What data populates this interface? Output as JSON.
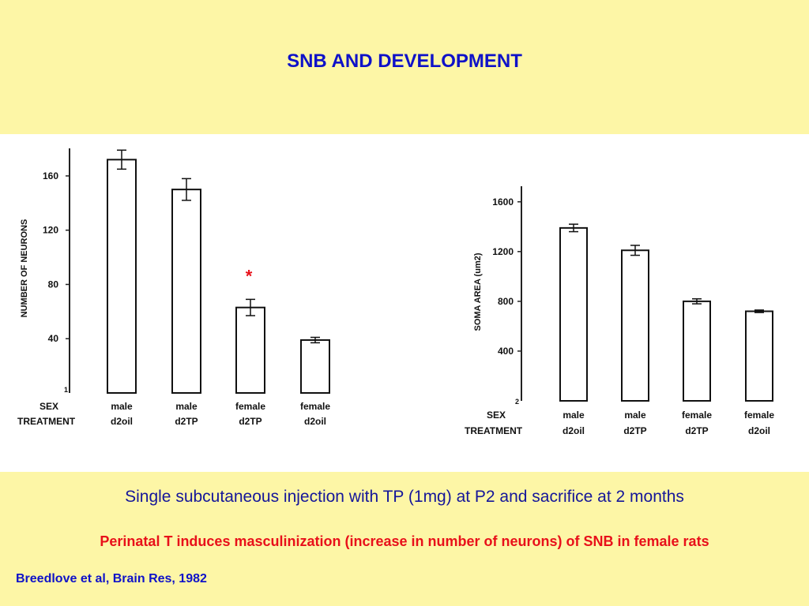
{
  "slide": {
    "title": "SNB AND DEVELOPMENT",
    "caption": "Single subcutaneous injection with TP (1mg) at P2 and sacrifice at 2 months",
    "conclusion": "Perinatal T induces masculinization (increase in number of neurons) of SNB in female rats",
    "citation": "Breedlove et al, Brain Res, 1982"
  },
  "colors": {
    "background": "#fdf6a6",
    "title": "#0f12c8",
    "caption": "#15169a",
    "conclusion": "#e8101a",
    "asterisk": "#e8101a"
  },
  "chart_data": [
    {
      "type": "bar",
      "ylabel": "NUMBER OF NEURONS",
      "panel_number": "1",
      "row_labels": [
        "SEX",
        "TREATMENT"
      ],
      "categories": [
        {
          "sex": "male",
          "treatment": "d2oil"
        },
        {
          "sex": "male",
          "treatment": "d2TP"
        },
        {
          "sex": "female",
          "treatment": "d2TP"
        },
        {
          "sex": "female",
          "treatment": "d2oil"
        }
      ],
      "values": [
        172,
        150,
        63,
        39
      ],
      "errors": [
        7,
        8,
        6,
        2
      ],
      "yticks": [
        40,
        80,
        120,
        160
      ],
      "ylim": [
        0,
        178
      ],
      "annotation": {
        "text": "*",
        "category_index": 2
      }
    },
    {
      "type": "bar",
      "ylabel": "SOMA AREA (um2)",
      "panel_number": "2",
      "row_labels": [
        "SEX",
        "TREATMENT"
      ],
      "categories": [
        {
          "sex": "male",
          "treatment": "d2oil"
        },
        {
          "sex": "male",
          "treatment": "d2TP"
        },
        {
          "sex": "female",
          "treatment": "d2TP"
        },
        {
          "sex": "female",
          "treatment": "d2oil"
        }
      ],
      "values": [
        1390,
        1210,
        800,
        720
      ],
      "errors": [
        30,
        40,
        20,
        10
      ],
      "yticks": [
        400,
        800,
        1200,
        1600
      ],
      "ylim": [
        0,
        1700
      ]
    }
  ]
}
